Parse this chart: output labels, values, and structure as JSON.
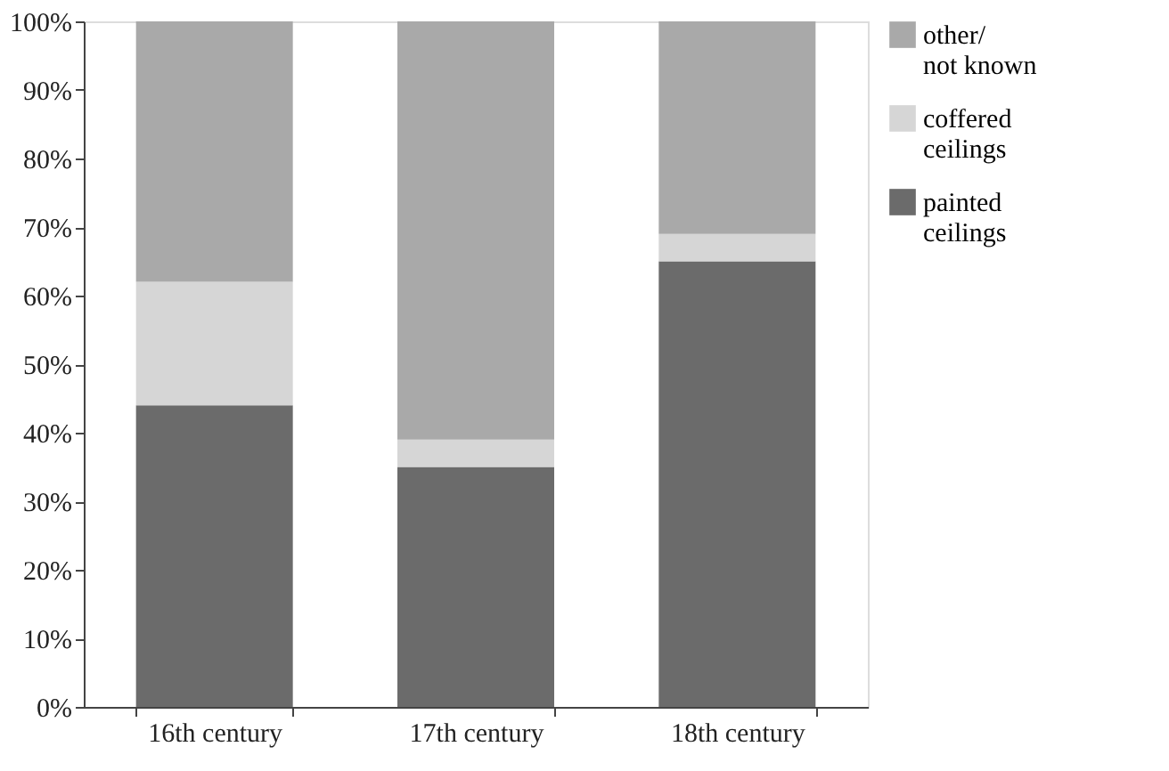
{
  "chart_data": {
    "type": "bar",
    "stacked": true,
    "categories": [
      "16th century",
      "17th century",
      "18th century"
    ],
    "series": [
      {
        "name": "painted\nceilings",
        "color": "#6b6b6b",
        "values": [
          44,
          35,
          65
        ]
      },
      {
        "name": "coffered\nceilings",
        "color": "#d6d6d6",
        "values": [
          18,
          4,
          4
        ]
      },
      {
        "name": "other/\nnot known",
        "color": "#a9a9a9",
        "values": [
          38,
          61,
          31
        ]
      }
    ],
    "ylim": [
      0,
      100
    ],
    "yticks": [
      {
        "value": 0,
        "label": "0%"
      },
      {
        "value": 10,
        "label": "10%"
      },
      {
        "value": 20,
        "label": "20%"
      },
      {
        "value": 30,
        "label": "30%"
      },
      {
        "value": 40,
        "label": "40%"
      },
      {
        "value": 50,
        "label": "50%"
      },
      {
        "value": 60,
        "label": "60%"
      },
      {
        "value": 70,
        "label": "70%"
      },
      {
        "value": 80,
        "label": "80%"
      },
      {
        "value": 90,
        "label": "90%"
      },
      {
        "value": 100,
        "label": "100%"
      }
    ],
    "grid": false,
    "legend": "right"
  }
}
